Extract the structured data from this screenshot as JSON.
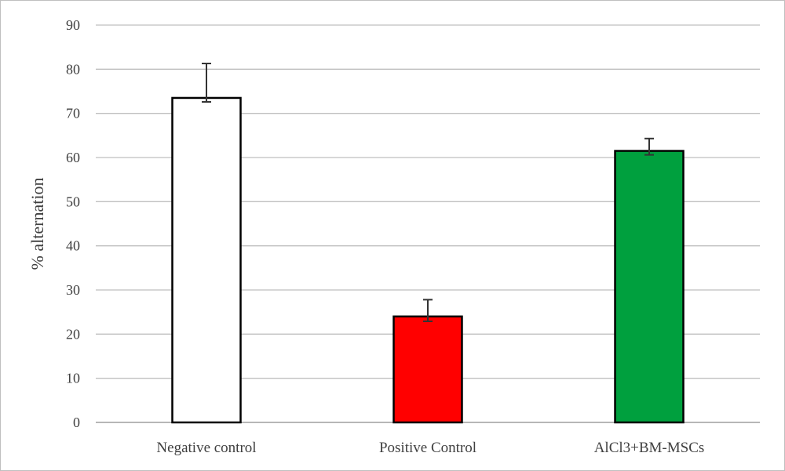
{
  "chart_data": {
    "type": "bar",
    "title": "",
    "xlabel": "",
    "ylabel": "% alternation",
    "ylim": [
      0,
      90
    ],
    "yticks": [
      0,
      10,
      20,
      30,
      40,
      50,
      60,
      70,
      80,
      90
    ],
    "grid": true,
    "categories": [
      "Negative control",
      "Positive Control",
      "AlCl3+BM-MSCs"
    ],
    "values": [
      73.5,
      24,
      61.5
    ],
    "error_upper": [
      81.3,
      27.8,
      64.3
    ],
    "error_lower": [
      72.6,
      22.9,
      60.6
    ],
    "colors": [
      "#ffffff",
      "#ff0000",
      "#00a03e"
    ]
  }
}
